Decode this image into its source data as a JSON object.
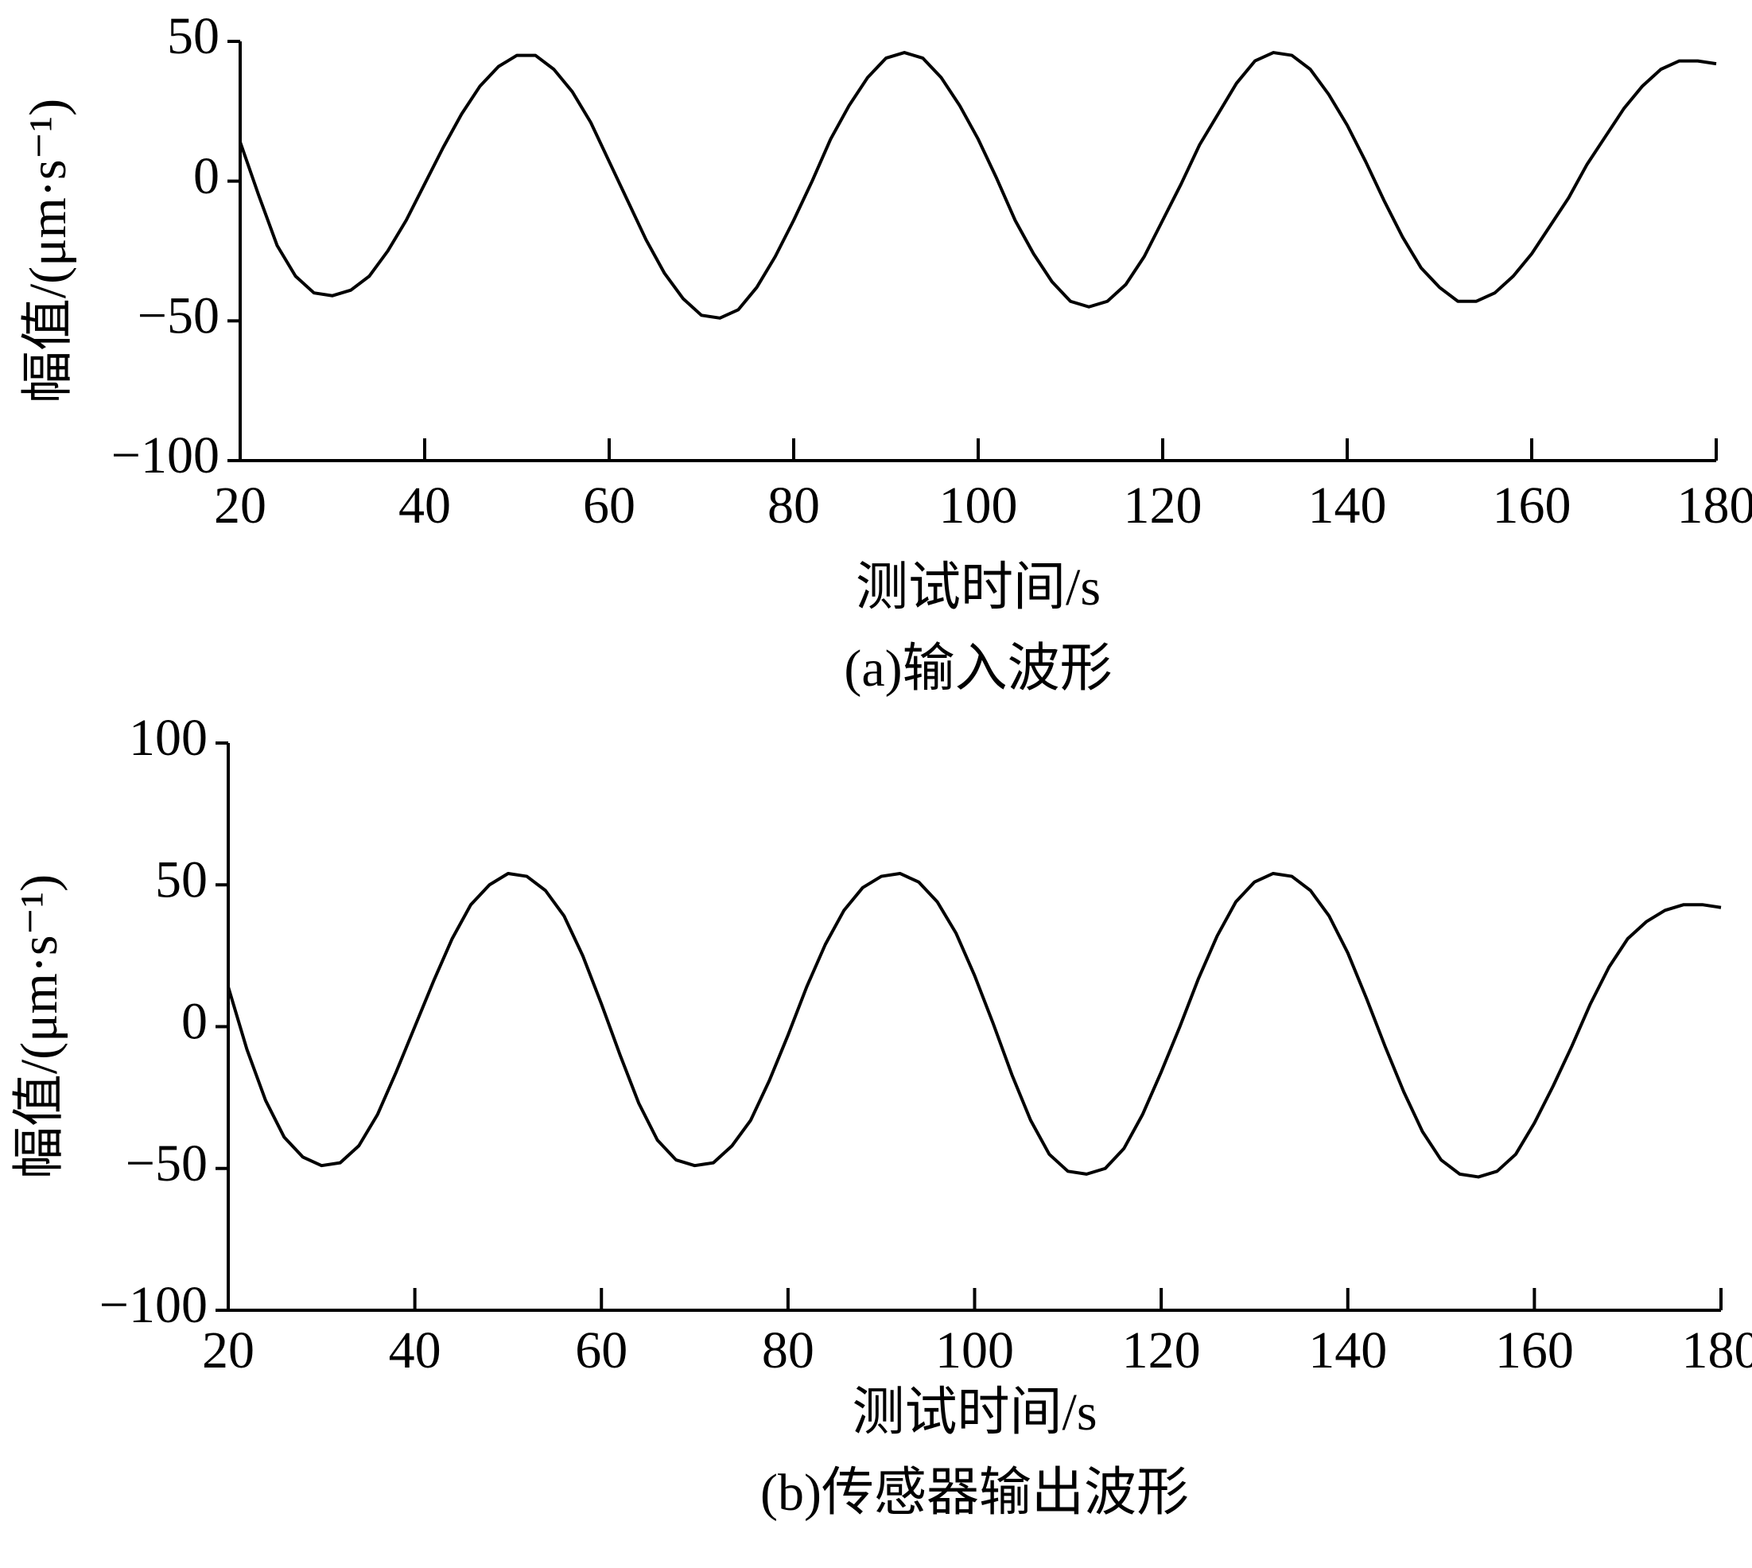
{
  "chart_data": [
    {
      "type": "line",
      "title": "(a)输入波形",
      "x_label": "测试时间/s",
      "y_label": "幅值/(μm·s⁻¹)",
      "x": [
        20,
        22,
        24,
        26,
        28,
        30,
        32,
        34,
        36,
        38,
        40,
        42,
        44,
        46,
        48,
        50,
        52,
        54,
        56,
        58,
        60,
        62,
        64,
        66,
        68,
        70,
        72,
        74,
        76,
        78,
        80,
        82,
        84,
        86,
        88,
        90,
        92,
        94,
        96,
        98,
        100,
        102,
        104,
        106,
        108,
        110,
        112,
        114,
        116,
        118,
        120,
        122,
        124,
        126,
        128,
        130,
        132,
        134,
        136,
        138,
        140,
        142,
        144,
        146,
        148,
        150,
        152,
        154,
        156,
        158,
        160,
        162,
        164,
        166,
        168,
        170,
        172,
        174,
        176,
        178,
        180
      ],
      "series": [
        {
          "color": "#000000",
          "values": [
            14,
            -5,
            -23,
            -34,
            -40,
            -41,
            -39,
            -34,
            -25,
            -14,
            -1,
            12,
            24,
            34,
            41,
            45,
            45,
            40,
            32,
            21,
            7,
            -7,
            -21,
            -33,
            -42,
            -48,
            -49,
            -46,
            -38,
            -27,
            -14,
            0,
            15,
            27,
            37,
            44,
            46,
            44,
            37,
            27,
            15,
            1,
            -14,
            -26,
            -36,
            -43,
            -45,
            -43,
            -37,
            -27,
            -14,
            -1,
            13,
            24,
            35,
            43,
            46,
            45,
            40,
            31,
            20,
            7,
            -7,
            -20,
            -31,
            -38,
            -43,
            -43,
            -40,
            -34,
            -26,
            -16,
            -6,
            6,
            16,
            26,
            34,
            40,
            43,
            43,
            42
          ]
        }
      ],
      "xlim": [
        20,
        180
      ],
      "xticks": [
        20,
        40,
        60,
        80,
        100,
        120,
        140,
        160,
        180
      ],
      "ylim": [
        -100,
        50
      ],
      "yticks": [
        {
          "value": -100,
          "label": "−100"
        },
        {
          "value": -50,
          "label": "−50"
        },
        0,
        50
      ],
      "grid": false
    },
    {
      "type": "line",
      "title": "(b)传感器输出波形",
      "x_label": "测试时间/s",
      "y_label": "幅值/(μm·s⁻¹)",
      "x": [
        20,
        22,
        24,
        26,
        28,
        30,
        32,
        34,
        36,
        38,
        40,
        42,
        44,
        46,
        48,
        50,
        52,
        54,
        56,
        58,
        60,
        62,
        64,
        66,
        68,
        70,
        72,
        74,
        76,
        78,
        80,
        82,
        84,
        86,
        88,
        90,
        92,
        94,
        96,
        98,
        100,
        102,
        104,
        106,
        108,
        110,
        112,
        114,
        116,
        118,
        120,
        122,
        124,
        126,
        128,
        130,
        132,
        134,
        136,
        138,
        140,
        142,
        144,
        146,
        148,
        150,
        152,
        154,
        156,
        158,
        160,
        162,
        164,
        166,
        168,
        170,
        172,
        174,
        176,
        178,
        180
      ],
      "series": [
        {
          "color": "#000000",
          "values": [
            14,
            -8,
            -26,
            -39,
            -46,
            -49,
            -48,
            -42,
            -31,
            -16,
            0,
            16,
            31,
            43,
            50,
            54,
            53,
            48,
            39,
            25,
            8,
            -10,
            -27,
            -40,
            -47,
            -49,
            -48,
            -42,
            -33,
            -19,
            -3,
            14,
            29,
            41,
            49,
            53,
            54,
            51,
            44,
            33,
            18,
            1,
            -17,
            -33,
            -45,
            -51,
            -52,
            -50,
            -43,
            -31,
            -16,
            0,
            17,
            32,
            44,
            51,
            54,
            53,
            48,
            39,
            26,
            10,
            -7,
            -23,
            -37,
            -47,
            -52,
            -53,
            -51,
            -45,
            -34,
            -21,
            -7,
            8,
            21,
            31,
            37,
            41,
            43,
            43,
            42
          ]
        }
      ],
      "xlim": [
        20,
        180
      ],
      "xticks": [
        20,
        40,
        60,
        80,
        100,
        120,
        140,
        160,
        180
      ],
      "ylim": [
        -100,
        100
      ],
      "yticks": [
        {
          "value": -100,
          "label": "−100"
        },
        {
          "value": -50,
          "label": "−50"
        },
        0,
        50,
        100
      ],
      "grid": false
    }
  ]
}
